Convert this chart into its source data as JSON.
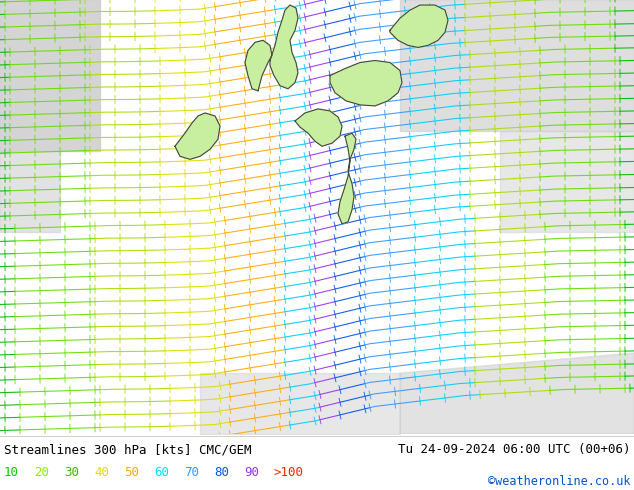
{
  "title_left": "Streamlines 300 hPa [kts] CMC/GEM",
  "title_right": "Tu 24-09-2024 06:00 UTC (00+06)",
  "credit": "©weatheronline.co.uk",
  "legend_values": [
    "10",
    "20",
    "30",
    "40",
    "50",
    "60",
    "70",
    "80",
    "90",
    ">100"
  ],
  "legend_colors": [
    "#00cc00",
    "#88ee00",
    "#33bb00",
    "#dddd00",
    "#ffaa00",
    "#00ddff",
    "#3399ff",
    "#0055ff",
    "#9933ff",
    "#ff2200"
  ],
  "bg_color": "#ffffff",
  "map_bg": "#c8eea0",
  "land_bg": "#c8eea0",
  "sea_bg": "#b8d8e8",
  "gray_land": "#c8c8c8",
  "border_color": "#444444",
  "figsize": [
    6.34,
    4.9
  ],
  "dpi": 100,
  "stream_colors": {
    "c10": "#00bb00",
    "c20": "#66dd00",
    "c30": "#aadd00",
    "c40": "#dddd00",
    "c50": "#ffaa00",
    "c60": "#00ccff",
    "c70": "#3399ff",
    "c80": "#0055ee",
    "c90": "#9933ee",
    "c100": "#ff2200"
  }
}
